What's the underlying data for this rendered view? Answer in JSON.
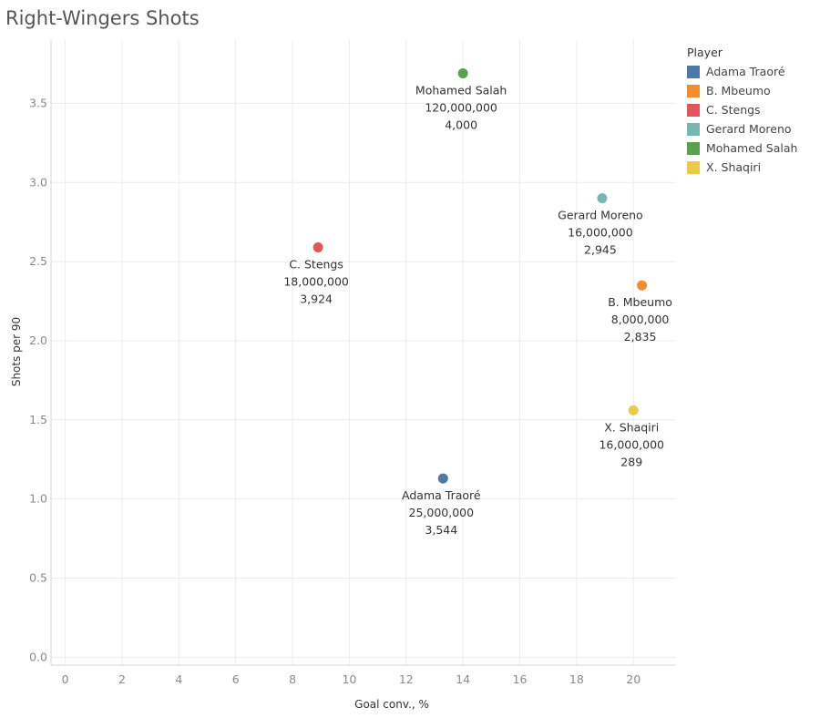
{
  "chart_data": {
    "type": "scatter",
    "title": "Right-Wingers Shots",
    "xlabel": "Goal conv., %",
    "ylabel": "Shots per 90",
    "xlim": [
      -0.5,
      21.5
    ],
    "ylim": [
      -0.05,
      3.9
    ],
    "xticks": [
      "0",
      "2",
      "4",
      "6",
      "8",
      "10",
      "12",
      "14",
      "16",
      "18",
      "20"
    ],
    "yticks": [
      "0.0",
      "0.5",
      "1.0",
      "1.5",
      "2.0",
      "2.5",
      "3.0",
      "3.5"
    ],
    "grid": true,
    "legend_title": "Player",
    "legend_position": "right",
    "series": [
      {
        "name": "Adama Traoré",
        "color": "#4e79a7",
        "x": 13.3,
        "y": 1.13,
        "label_lines": [
          "Adama Traoré",
          "25,000,000",
          "3,544"
        ]
      },
      {
        "name": "B. Mbeumo",
        "color": "#f28e2b",
        "x": 20.3,
        "y": 2.35,
        "label_lines": [
          "B. Mbeumo",
          "8,000,000",
          "2,835"
        ]
      },
      {
        "name": "C. Stengs",
        "color": "#e15759",
        "x": 8.9,
        "y": 2.59,
        "label_lines": [
          "C. Stengs",
          "18,000,000",
          "3,924"
        ]
      },
      {
        "name": "Gerard Moreno",
        "color": "#76b7b2",
        "x": 18.9,
        "y": 2.9,
        "label_lines": [
          "Gerard Moreno",
          "16,000,000",
          "2,945"
        ]
      },
      {
        "name": "Mohamed Salah",
        "color": "#59a14f",
        "x": 14.0,
        "y": 3.69,
        "label_lines": [
          "Mohamed Salah",
          "120,000,000",
          "4,000"
        ]
      },
      {
        "name": "X. Shaqiri",
        "color": "#edc948",
        "x": 20.0,
        "y": 1.56,
        "label_lines": [
          "X. Shaqiri",
          "16,000,000",
          "289"
        ]
      }
    ]
  }
}
